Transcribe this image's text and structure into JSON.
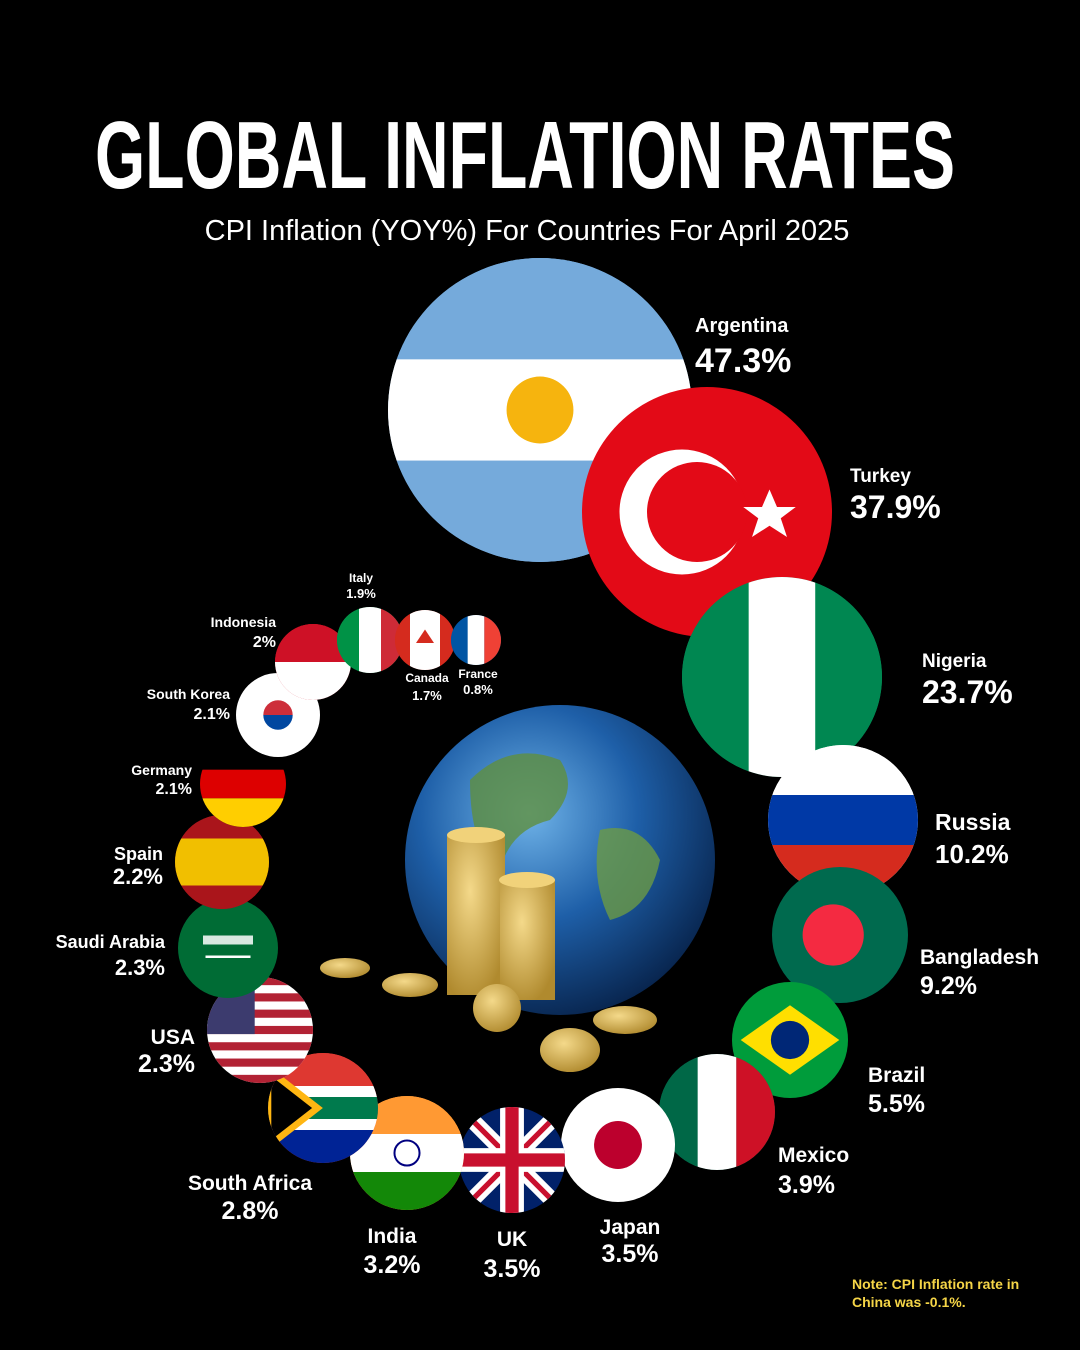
{
  "chart_data": {
    "type": "bubble",
    "title": "GLOBAL INFLATION RATES",
    "subtitle": "CPI Inflation (YOY%) For Countries For April 2025",
    "note": "Note: CPI Inflation rate in China was -0.1%.",
    "categories": [
      "Argentina",
      "Turkey",
      "Nigeria",
      "Russia",
      "Bangladesh",
      "Brazil",
      "Mexico",
      "Japan",
      "UK",
      "India",
      "South Africa",
      "USA",
      "Saudi Arabia",
      "Spain",
      "Germany",
      "South Korea",
      "Indonesia",
      "Italy",
      "Canada",
      "France"
    ],
    "values": [
      47.3,
      37.9,
      23.7,
      10.2,
      9.2,
      5.5,
      3.9,
      3.5,
      3.5,
      3.2,
      2.8,
      2.3,
      2.3,
      2.2,
      2.1,
      2.1,
      2,
      1.9,
      1.7,
      0.8
    ],
    "value_labels": [
      "47.3%",
      "37.9%",
      "23.7%",
      "10.2%",
      "9.2%",
      "5.5%",
      "3.9%",
      "3.5%",
      "3.5%",
      "3.2%",
      "2.8%",
      "2.3%",
      "2.3%",
      "2.2%",
      "2.1%",
      "2.1%",
      "2%",
      "1.9%",
      "1.7%",
      "0.8%"
    ]
  }
}
